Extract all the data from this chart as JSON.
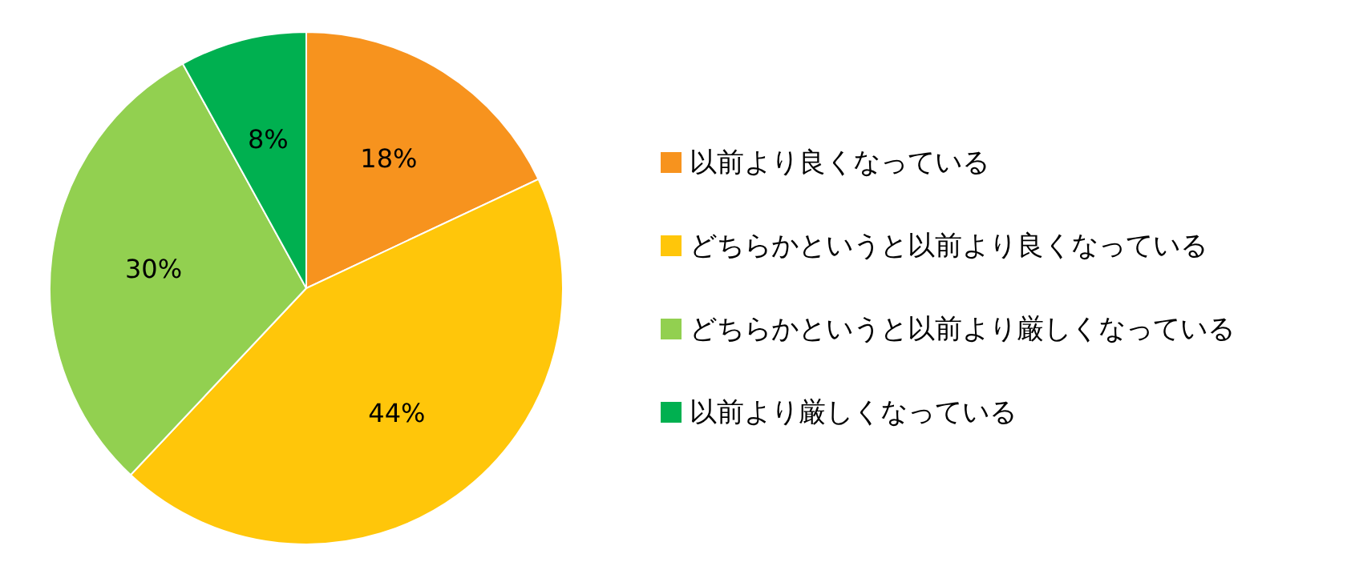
{
  "chart_data": {
    "type": "pie",
    "categories": [
      "以前より良くなっている",
      "どちらかというと以前より良くなっている",
      "どちらかというと以前より厳しくなっている",
      "以前より厳しくなっている"
    ],
    "values": [
      18,
      44,
      30,
      8
    ],
    "value_labels": [
      "18%",
      "44%",
      "30%",
      "8%"
    ],
    "colors": [
      "#f7931e",
      "#ffc60a",
      "#92d050",
      "#00b050"
    ],
    "legend": "right"
  }
}
